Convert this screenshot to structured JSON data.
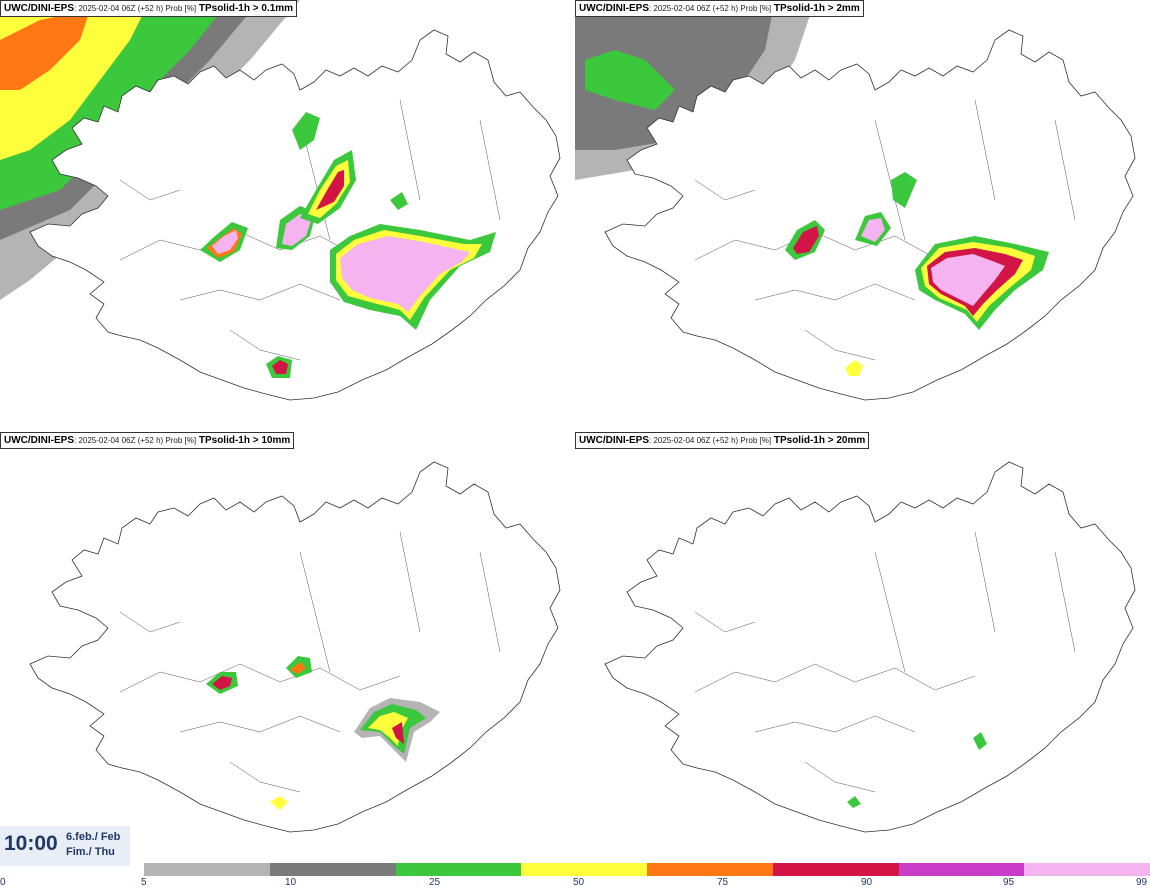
{
  "panels": [
    {
      "model": "UWC/DINI-EPS",
      "meta": "2025-02-04 06Z (+52 h) Prob [%]",
      "variable": "TPsolid-1h > 0.1mm"
    },
    {
      "model": "UWC/DINI-EPS",
      "meta": "2025-02-04 06Z (+52 h) Prob [%]",
      "variable": "TPsolid-1h > 2mm"
    },
    {
      "model": "UWC/DINI-EPS",
      "meta": "2025-02-04 06Z (+52 h) Prob [%]",
      "variable": "TPsolid-1h > 10mm"
    },
    {
      "model": "UWC/DINI-EPS",
      "meta": "2025-02-04 06Z (+52 h) Prob [%]",
      "variable": "TPsolid-1h > 20mm"
    }
  ],
  "valid_time": {
    "time": "10:00",
    "date_line1": "6.feb./ Feb",
    "date_line2": "Fim./ Thu"
  },
  "colorbar": {
    "ticks": [
      "0",
      "5",
      "10",
      "25",
      "50",
      "75",
      "90",
      "95",
      "99"
    ],
    "colors": [
      "#b4b4b4",
      "#7a7a7a",
      "#3cc83c",
      "#ffff3c",
      "#ff7814",
      "#d21446",
      "#c83cc8",
      "#f5b4f0"
    ]
  }
}
